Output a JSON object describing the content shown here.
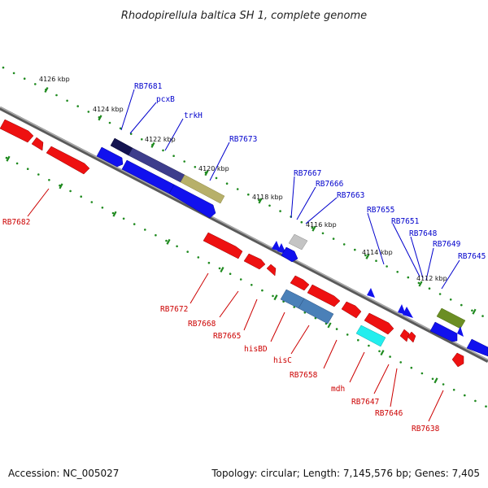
{
  "title": "Rhodopirellula baltica SH 1, complete genome",
  "footer": {
    "accession": "Accession: NC_005027",
    "summary": "Topology: circular; Length: 7,145,576 bp; Genes: 7,405"
  },
  "scale": {
    "ticks": [
      "4126 kbp",
      "4124 kbp",
      "4122 kbp",
      "4120 kbp",
      "4118 kbp",
      "4116 kbp",
      "4114 kbp",
      "4112 kbp"
    ]
  },
  "colors": {
    "forward_label": "#0000cc",
    "reverse_label": "#cc0000",
    "backbone": "#8a8a8a",
    "tick": "#1f8a1f",
    "gene_red": "#ee1111",
    "gene_blue": "#1111ee",
    "gene_navy": "#141450",
    "gene_slate": "#3d3d8c",
    "gene_khaki": "#b7b06a",
    "gene_grey": "#c4c4c4",
    "gene_steel": "#4a80b8",
    "gene_cyan": "#22eeee",
    "gene_olive": "#6b8e23"
  },
  "forward_labels": [
    "RB7681",
    "pcxB",
    "trkH",
    "RB7673",
    "RB7667",
    "RB7666",
    "RB7663",
    "RB7655",
    "RB7651",
    "RB7648",
    "RB7649",
    "RB7645"
  ],
  "reverse_labels": [
    "RB7682",
    "RB7672",
    "RB7668",
    "RB7665",
    "hisBD",
    "hisC",
    "RB7658",
    "mdh",
    "RB7647",
    "RB7646",
    "RB7638"
  ]
}
